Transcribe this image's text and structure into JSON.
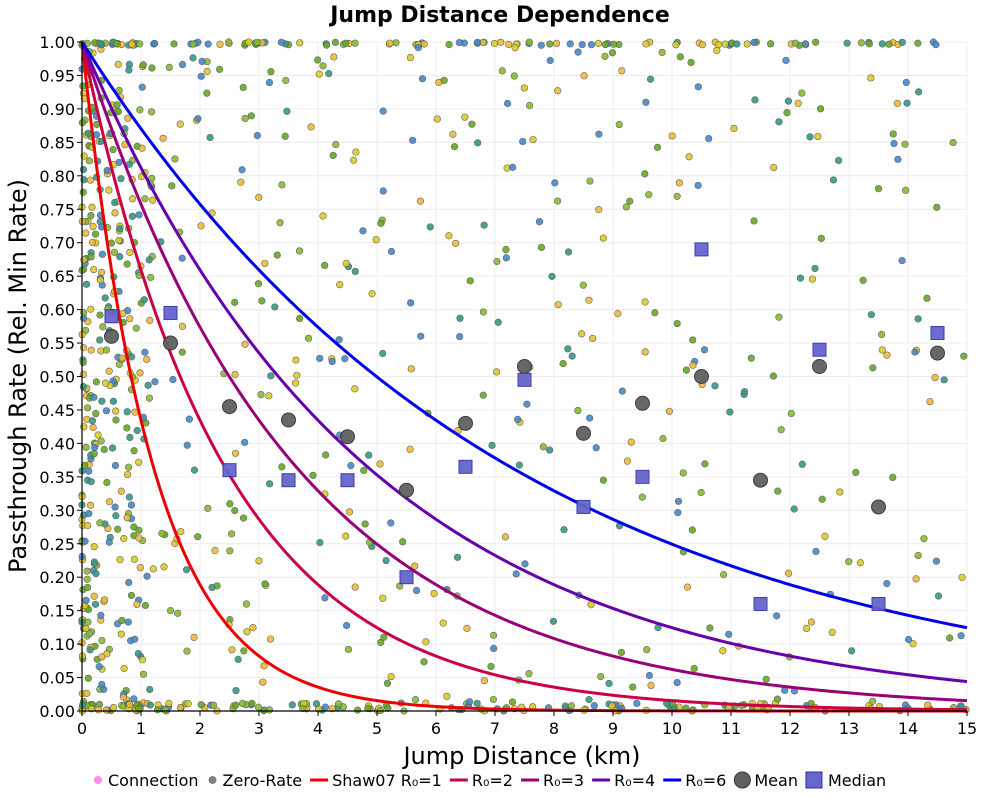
{
  "chart_data": {
    "type": "scatter",
    "title": "Jump Distance Dependence",
    "xlabel": "Jump Distance (km)",
    "ylabel": "Passthrough Rate (Rel. Min Rate)",
    "xlim": [
      0,
      15
    ],
    "ylim": [
      0,
      1
    ],
    "xticks": [
      "0",
      "1",
      "2",
      "3",
      "4",
      "5",
      "6",
      "7",
      "8",
      "9",
      "10",
      "11",
      "12",
      "13",
      "14",
      "15"
    ],
    "yticks": [
      "0.00",
      "0.05",
      "0.10",
      "0.15",
      "0.20",
      "0.25",
      "0.30",
      "0.35",
      "0.40",
      "0.45",
      "0.50",
      "0.55",
      "0.60",
      "0.65",
      "0.70",
      "0.75",
      "0.80",
      "0.85",
      "0.90",
      "0.95",
      "1.00"
    ],
    "grid": true,
    "legend_position": "bottom",
    "legend": [
      {
        "label": "Connection",
        "kind": "dot",
        "color": "#ff88ee"
      },
      {
        "label": "Zero-Rate",
        "kind": "dot",
        "color": "#808080"
      },
      {
        "label": "Shaw07 R₀=1",
        "kind": "line",
        "color": "#ee0000"
      },
      {
        "label": "R₀=2",
        "kind": "line",
        "color": "#cc0044"
      },
      {
        "label": "R₀=3",
        "kind": "line",
        "color": "#990077"
      },
      {
        "label": "R₀=4",
        "kind": "line",
        "color": "#6600aa"
      },
      {
        "label": "R₀=6",
        "kind": "line",
        "color": "#0000ee"
      },
      {
        "label": "Mean",
        "kind": "bigdot",
        "color": "#606060"
      },
      {
        "label": "Median",
        "kind": "square",
        "color": "#6666cc"
      }
    ],
    "series_curves": [
      {
        "name": "Shaw07 R₀=1",
        "R0": 1,
        "color": "#ee0000"
      },
      {
        "name": "R₀=2",
        "R0": 2,
        "color": "#cc0044"
      },
      {
        "name": "R₀=3",
        "R0": 3,
        "color": "#990077"
      },
      {
        "name": "R₀=4",
        "R0": 4,
        "color": "#6600aa"
      },
      {
        "name": "R₀=6",
        "R0": 6,
        "color": "#0000ee"
      }
    ],
    "mean": {
      "x": [
        0.5,
        1.5,
        2.5,
        3.5,
        4.5,
        5.5,
        6.5,
        7.5,
        8.5,
        9.5,
        10.5,
        11.5,
        12.5,
        13.5,
        14.5
      ],
      "y": [
        0.56,
        0.55,
        0.455,
        0.435,
        0.41,
        0.33,
        0.43,
        0.515,
        0.415,
        0.46,
        0.5,
        0.345,
        0.515,
        0.305,
        0.535
      ]
    },
    "median": {
      "x": [
        0.5,
        1.5,
        2.5,
        3.5,
        4.5,
        5.5,
        6.5,
        7.5,
        8.5,
        9.5,
        10.5,
        11.5,
        12.5,
        13.5,
        14.5
      ],
      "y": [
        0.59,
        0.595,
        0.36,
        0.345,
        0.345,
        0.2,
        0.365,
        0.495,
        0.305,
        0.35,
        0.69,
        0.16,
        0.54,
        0.16,
        0.565
      ]
    },
    "connections_note": "Approximately 1200 individual connection points (green/yellow/teal) scattered across the plot, densest near x=0 and along y=0 and y=1.",
    "connection_colors": [
      "#66aa22",
      "#ddcc22",
      "#339988",
      "#4488cc",
      "#88bb33",
      "#eebb33"
    ]
  }
}
